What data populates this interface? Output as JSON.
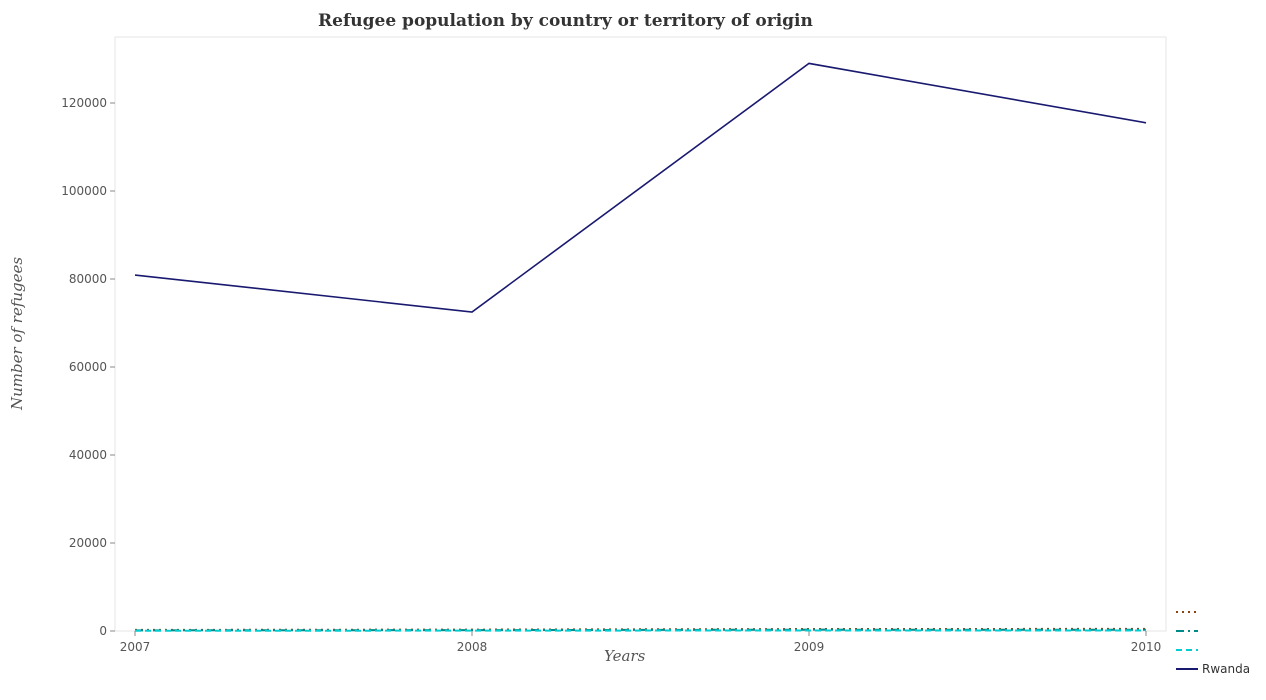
{
  "chart_data": {
    "type": "line",
    "title": "Refugee population by country or territory of origin",
    "xlabel": "Years",
    "ylabel": "Number of refugees",
    "x": [
      "2007",
      "2008",
      "2009",
      "2010"
    ],
    "ylim": [
      0,
      135000
    ],
    "yticks": [
      0,
      20000,
      40000,
      60000,
      80000,
      100000,
      120000
    ],
    "ytick_labels": [
      "0",
      "20000",
      "40000",
      "60000",
      "80000",
      "100000",
      "120000"
    ],
    "grid": false,
    "legend_position": "bottom-right",
    "series": [
      {
        "name": "",
        "values": [
          250,
          320,
          450,
          480
        ],
        "color": "#8B4513",
        "dash": "dotted"
      },
      {
        "name": "",
        "values": [
          150,
          200,
          300,
          280
        ],
        "color": "#008B8B",
        "dash": "dashdot"
      },
      {
        "name": "",
        "values": [
          50,
          80,
          120,
          100
        ],
        "color": "#00CED1",
        "dash": "dashed"
      },
      {
        "name": "Rwanda",
        "values": [
          80900,
          72500,
          129000,
          115500
        ],
        "color": "#191970",
        "dash": "solid"
      }
    ]
  }
}
